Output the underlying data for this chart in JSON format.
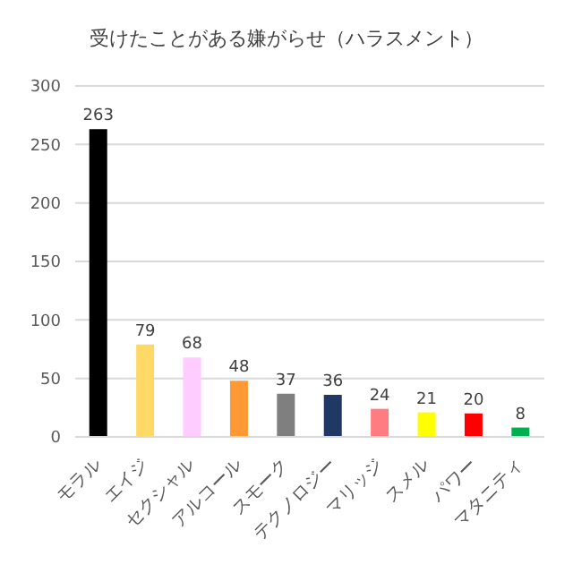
{
  "chart_data": {
    "type": "bar",
    "title": "受けたことがある嫌がらせ（ハラスメント）",
    "categories": [
      "モラル",
      "エイジ",
      "セクシャル",
      "アルコール",
      "スモーク",
      "テクノロジー",
      "マリッジ",
      "スメル",
      "パワー",
      "マタニティ"
    ],
    "values": [
      263,
      79,
      68,
      48,
      37,
      36,
      24,
      21,
      20,
      8
    ],
    "colors": [
      "#000000",
      "#ffd966",
      "#ffccff",
      "#ff9933",
      "#7f7f7f",
      "#1f3864",
      "#ff7c80",
      "#ffff00",
      "#ff0000",
      "#00b050"
    ],
    "ylim": [
      0,
      300
    ],
    "yticks": [
      0,
      50,
      100,
      150,
      200,
      250,
      300
    ],
    "grid": "y",
    "data_labels": true
  }
}
